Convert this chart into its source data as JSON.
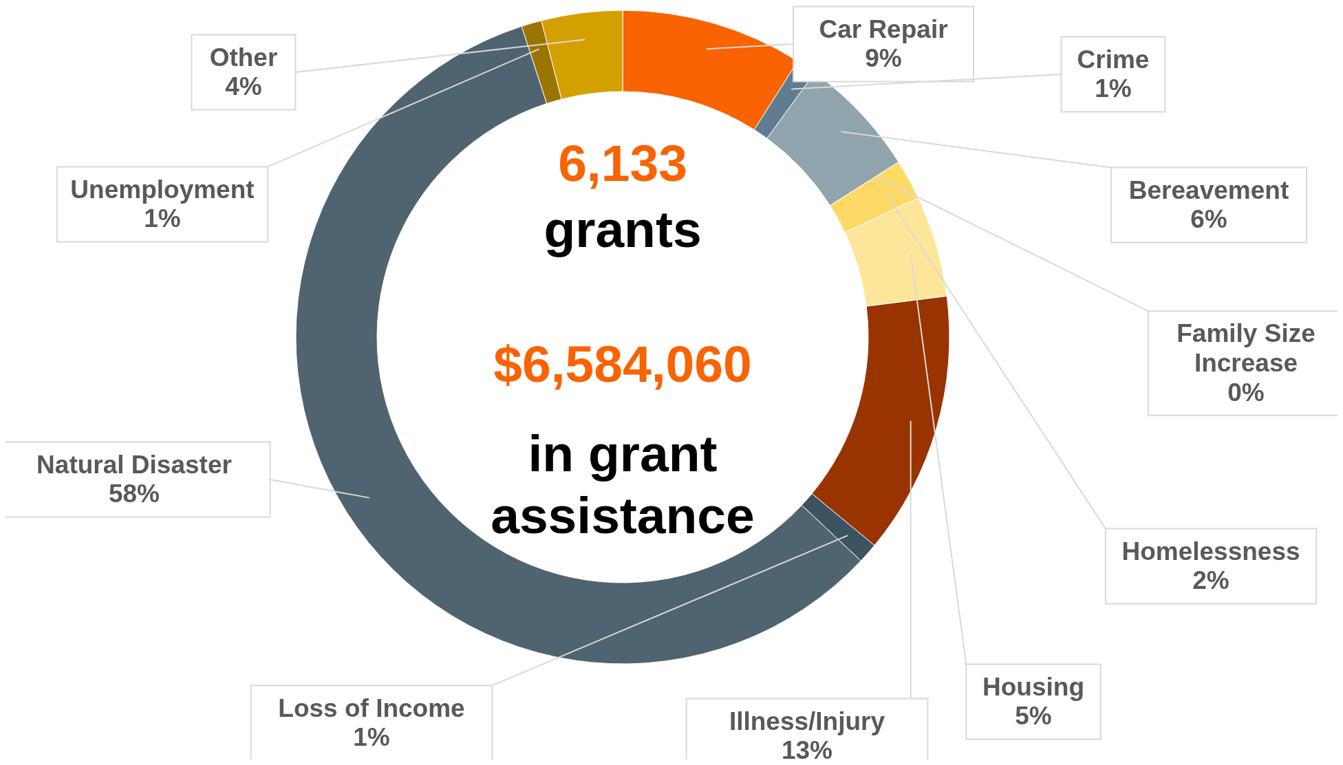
{
  "chart_data": {
    "type": "donut",
    "categories": [
      "Car Repair",
      "Crime",
      "Bereavement",
      "Family Size Increase",
      "Homelessness",
      "Housing",
      "Illness/Injury",
      "Loss of Income",
      "Natural Disaster",
      "Unemployment",
      "Other"
    ],
    "values": [
      9,
      1,
      6,
      0,
      2,
      5,
      13,
      1,
      58,
      1,
      4
    ],
    "value_labels": [
      "9%",
      "1%",
      "6%",
      "0%",
      "2%",
      "5%",
      "13%",
      "1%",
      "58%",
      "1%",
      "4%"
    ],
    "colors": [
      "#f96302",
      "#5f7d8e",
      "#90a4ae",
      "#ffc000",
      "#ffd966",
      "#fde699",
      "#993300",
      "#3d5360",
      "#4f6470",
      "#9c7400",
      "#d4a000"
    ],
    "annotations": [
      "6,133",
      "grants",
      "$6,584,060",
      "in grant assistance"
    ]
  }
}
